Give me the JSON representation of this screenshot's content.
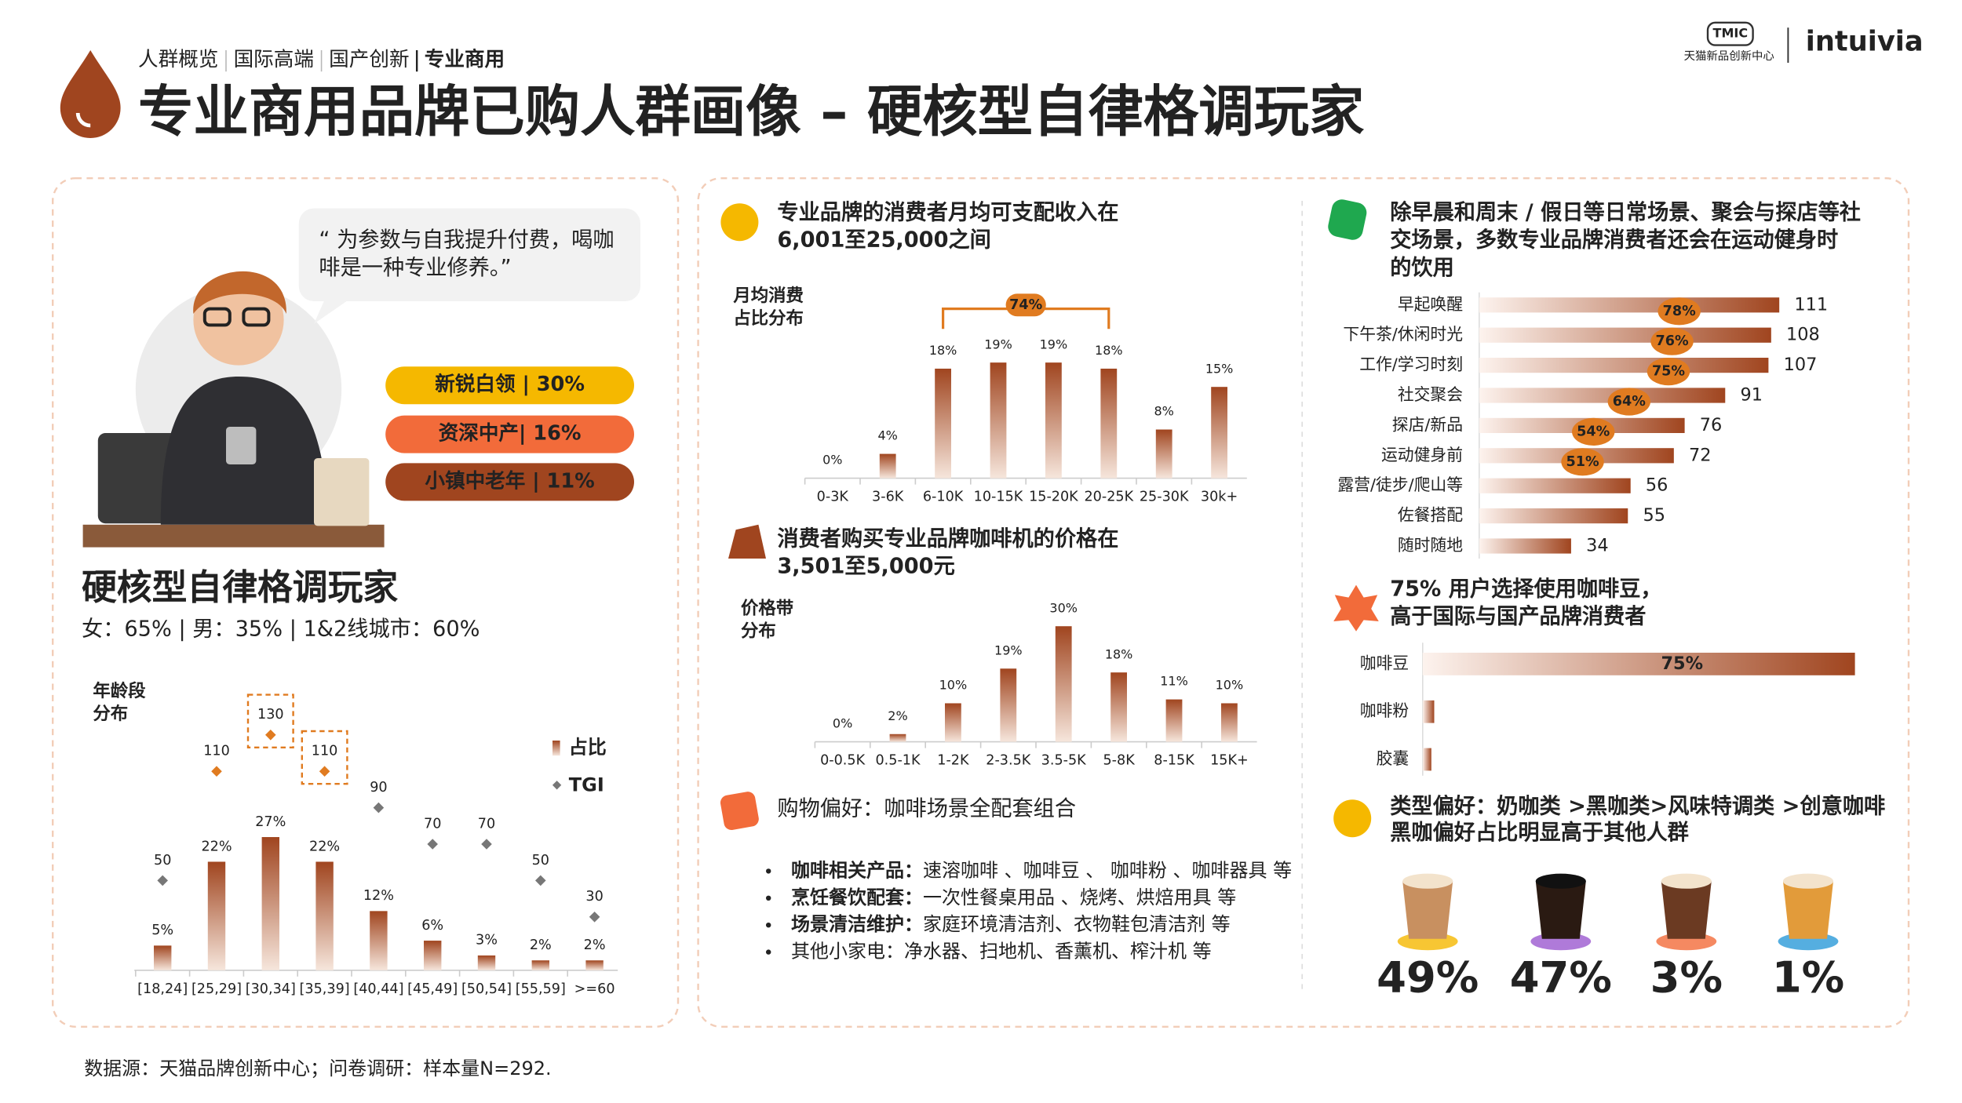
{
  "header": {
    "breadcrumb": [
      "人群概览",
      "国际高端",
      "国产创新",
      "专业商用"
    ],
    "title": "专业商用品牌已购人群画像 – 硬核型自律格调玩家",
    "logo_tmic": "TMIC",
    "logo_sub": "天猫新品创新中心",
    "logo_brand": "intuivia"
  },
  "persona": {
    "quote": [
      "“ 为参数与自我提升付费，喝咖",
      "啡是一种专业修养。”"
    ],
    "segments": [
      "新锐白领 | 30%",
      "资深中产| 16%",
      "小镇中老年 | 11%"
    ],
    "segment_colors": [
      "#f5b800",
      "#f26b3a",
      "#a0451f"
    ],
    "name": "硬核型自律格调玩家",
    "demographics": "女：65% | 男：35% | 1&2线城市：60%"
  },
  "purchase": {
    "title": "购物偏好：咖啡场景全配套组合",
    "items": [
      {
        "term": "咖啡相关产品：",
        "text": "速溶咖啡 、咖啡豆 、 咖啡粉 、咖啡器具 等"
      },
      {
        "term": "烹饪餐饮配套：",
        "text": "一次性餐桌用品 、烧烤、烘焙用具 等"
      },
      {
        "term": "场景清洁维护：",
        "text": "家庭环境清洁剂、衣物鞋包清洁剂 等"
      },
      {
        "text": "其他小家电：净水器、扫地机、香薰机、榨汁机 等"
      }
    ]
  },
  "type_preference": {
    "title": [
      "类型偏好：奶咖类 >黑咖类>风味特调类 >创意咖啡",
      "黑咖偏好占比明显高于其他人群"
    ],
    "items": [
      "49%",
      "47%",
      "3%",
      "1%"
    ],
    "colors": [
      "#f5b800",
      "#9b59d0",
      "#f26b3a",
      "#2a9ad8"
    ]
  },
  "footer": "数据源：天猫品牌创新中心；问卷调研：样本量N=292.",
  "chart_data": [
    {
      "type": "bar",
      "y_label": [
        "年龄段",
        "分布"
      ],
      "categories": [
        "[18,24]",
        "[25,29]",
        "[30,34]",
        "[35,39]",
        "[40,44]",
        "[45,49]",
        "[50,54]",
        "[55,59]",
        ">=60"
      ],
      "series": [
        {
          "name": "占比",
          "color": "#a0451f",
          "values": [
            5,
            22,
            27,
            22,
            12,
            6,
            3,
            2,
            2
          ],
          "value_labels": [
            "5%",
            "22%",
            "27%",
            "22%",
            "12%",
            "6%",
            "3%",
            "2%",
            "2%"
          ]
        },
        {
          "name": "TGI",
          "type": "scatter",
          "color": "#777777",
          "colors": [
            "#777777",
            "#e07b20",
            "#e07b20",
            "#e07b20",
            "#777777",
            "#777777",
            "#777777",
            "#777777",
            "#777777"
          ],
          "values": [
            50,
            110,
            130,
            110,
            90,
            70,
            70,
            50,
            30
          ]
        }
      ]
    },
    {
      "type": "bar",
      "title": [
        "专业品牌的消费者月均可支配收入在",
        "6,001至25,000之间"
      ],
      "y_label": [
        "月均消费",
        "占比分布"
      ],
      "color": "#a0451f",
      "categories": [
        "0-3K",
        "3-6K",
        "6-10K",
        "10-15K",
        "15-20K",
        "20-25K",
        "25-30K",
        "30k+"
      ],
      "values": [
        0,
        4,
        18,
        19,
        19,
        18,
        8,
        15
      ],
      "value_labels": [
        "0%",
        "4%",
        "18%",
        "19%",
        "19%",
        "18%",
        "8%",
        "15%"
      ],
      "annotation": {
        "text": "74%",
        "span": [
          "6-10K",
          "20-25K"
        ],
        "color": "#e07b20"
      }
    },
    {
      "type": "bar",
      "title": [
        "消费者购买专业品牌咖啡机的价格在",
        "3,501至5,000元"
      ],
      "y_label": [
        "价格带",
        "分布"
      ],
      "color": "#a0451f",
      "categories": [
        "0-0.5K",
        "0.5-1K",
        "1-2K",
        "2-3.5K",
        "3.5-5K",
        "5-8K",
        "8-15K",
        "15K+"
      ],
      "values": [
        0,
        2,
        10,
        19,
        30,
        18,
        11,
        10
      ],
      "value_labels": [
        "0%",
        "2%",
        "10%",
        "19%",
        "30%",
        "18%",
        "11%",
        "10%"
      ]
    },
    {
      "type": "hbar",
      "title": [
        "除早晨和周末 / 假日等日常场景、聚会与探店等社",
        "交场景，多数专业品牌消费者还会在运动健身时",
        "的饮用"
      ],
      "color": "#a0451f",
      "categories": [
        "早起唤醒",
        "下午茶/休闲时光",
        "工作/学习时刻",
        "社交聚会",
        "探店/新品",
        "运动健身前",
        "露营/徒步/爬山等",
        "佐餐搭配",
        "随时随地"
      ],
      "values": [
        111,
        108,
        107,
        91,
        76,
        72,
        56,
        55,
        34
      ],
      "percents": [
        78,
        76,
        75,
        64,
        54,
        51,
        null,
        null,
        null
      ],
      "percent_labels": [
        "78%",
        "76%",
        "75%",
        "64%",
        "54%",
        "51%",
        null,
        null,
        null
      ],
      "percent_color": "#e07b20"
    },
    {
      "type": "hbar",
      "title": [
        "75% 用户选择使用咖啡豆，",
        "高于国际与国产品牌消费者"
      ],
      "color": "#a0451f",
      "categories": [
        "咖啡豆",
        "咖啡粉",
        "胶囊"
      ],
      "values": [
        75,
        2,
        1.5
      ],
      "value_labels": [
        "75%",
        null,
        null
      ]
    }
  ]
}
